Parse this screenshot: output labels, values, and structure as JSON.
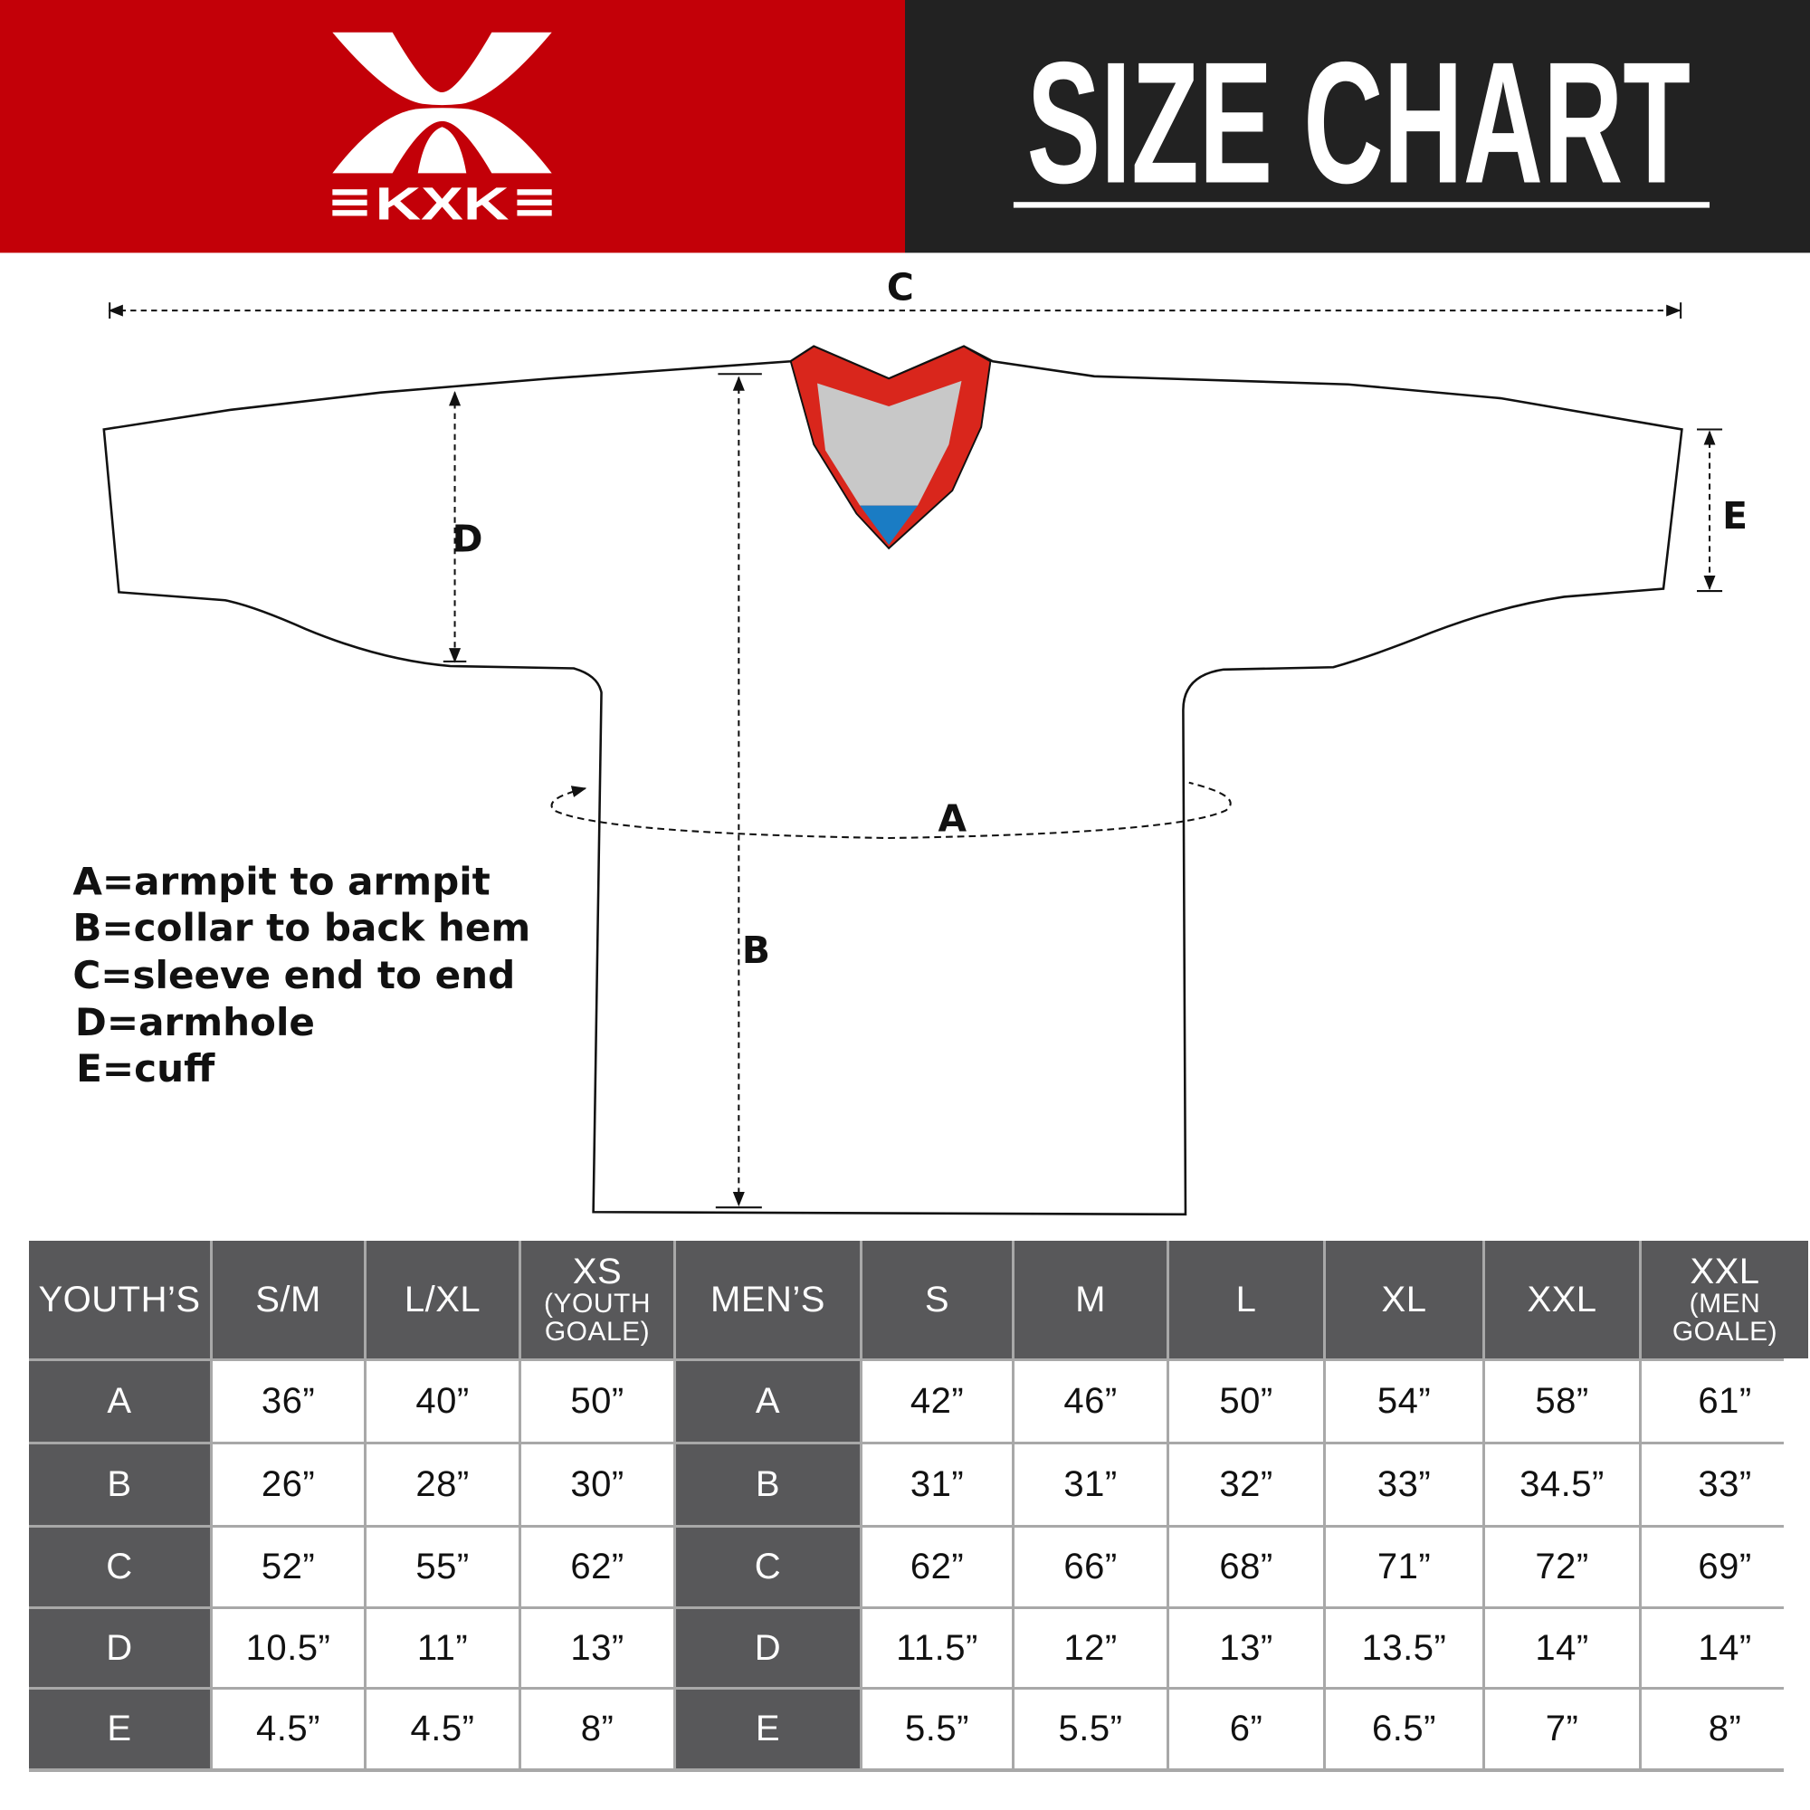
{
  "brand": {
    "logo_text": "KXK",
    "colors": {
      "red": "#c30008",
      "dark": "#222222",
      "table_header": "#58585a",
      "collar_red": "#d9261c",
      "collar_grey": "#c8c8c8",
      "collar_blue": "#1a7cc4"
    }
  },
  "header": {
    "title": "SIZE CHART"
  },
  "diagram": {
    "labels": {
      "a": "A",
      "b": "B",
      "c": "C",
      "d": "D",
      "e": "E"
    }
  },
  "legend": [
    "A=armpit to armpit",
    "B=collar to back hem",
    "C=sleeve end to end",
    "D=armhole",
    "E=cuff"
  ],
  "table": {
    "headers": [
      {
        "main": "YOUTH’S"
      },
      {
        "main": "S/M"
      },
      {
        "main": "L/XL"
      },
      {
        "main": "XS",
        "sub1": "(YOUTH",
        "sub2": "GOALE)"
      },
      {
        "main": "MEN’S"
      },
      {
        "main": "S"
      },
      {
        "main": "M"
      },
      {
        "main": "L"
      },
      {
        "main": "XL"
      },
      {
        "main": "XXL"
      },
      {
        "main": "XXL",
        "sub1": "(MEN",
        "sub2": "GOALE)"
      }
    ],
    "rows": [
      {
        "youth_label": "A",
        "youth": [
          "36”",
          "40”",
          "50”"
        ],
        "men_label": "A",
        "men": [
          "42”",
          "46”",
          "50”",
          "54”",
          "58”",
          "61”"
        ]
      },
      {
        "youth_label": "B",
        "youth": [
          "26”",
          "28”",
          "30”"
        ],
        "men_label": "B",
        "men": [
          "31”",
          "31”",
          "32”",
          "33”",
          "34.5”",
          "33”"
        ]
      },
      {
        "youth_label": "C",
        "youth": [
          "52”",
          "55”",
          "62”"
        ],
        "men_label": "C",
        "men": [
          "62”",
          "66”",
          "68”",
          "71”",
          "72”",
          "69”"
        ]
      },
      {
        "youth_label": "D",
        "youth": [
          "10.5”",
          "11”",
          "13”"
        ],
        "men_label": "D",
        "men": [
          "11.5”",
          "12”",
          "13”",
          "13.5”",
          "14”",
          "14”"
        ]
      },
      {
        "youth_label": "E",
        "youth": [
          "4.5”",
          "4.5”",
          "8”"
        ],
        "men_label": "E",
        "men": [
          "5.5”",
          "5.5”",
          "6”",
          "6.5”",
          "7”",
          "8”"
        ]
      }
    ]
  }
}
